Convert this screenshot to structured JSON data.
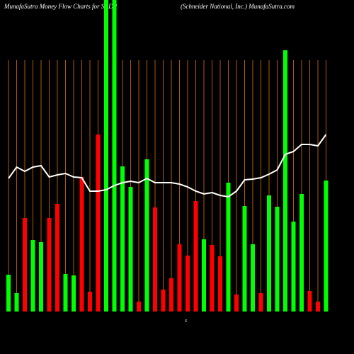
{
  "chart_data": {
    "type": "bar",
    "title": "MunafaSutra  Money  Flow  Charts for SNDR",
    "subtitle": "(Schneider  National,  Inc.)  MunafaSutra.com",
    "x_label": "S",
    "values": [
      52,
      26,
      132,
      101,
      98,
      132,
      152,
      53,
      51,
      190,
      28,
      250,
      440,
      440,
      205,
      176,
      14,
      215,
      147,
      31,
      47,
      95,
      79,
      156,
      102,
      94,
      78,
      182,
      24,
      149,
      95,
      26,
      164,
      148,
      369,
      127,
      166,
      29,
      14,
      185
    ],
    "colors": [
      "#00ff00",
      "#00ff00",
      "#ff0000",
      "#00ff00",
      "#00ff00",
      "#ff0000",
      "#ff0000",
      "#00ff00",
      "#00ff00",
      "#ff0000",
      "#ff0000",
      "#ff0000",
      "#00ff00",
      "#00ff00",
      "#00ff00",
      "#00ff00",
      "#ff0000",
      "#00ff00",
      "#ff0000",
      "#ff0000",
      "#ff0000",
      "#ff0000",
      "#ff0000",
      "#ff0000",
      "#00ff00",
      "#ff0000",
      "#ff0000",
      "#00ff00",
      "#ff0000",
      "#00ff00",
      "#00ff00",
      "#ff0000",
      "#00ff00",
      "#00ff00",
      "#00ff00",
      "#00ff00",
      "#00ff00",
      "#ff0000",
      "#ff0000",
      "#00ff00"
    ],
    "line_values": [
      188,
      204,
      198,
      204,
      206,
      190,
      193,
      195,
      190,
      189,
      170,
      170,
      172,
      178,
      182,
      184,
      182,
      188,
      182,
      182,
      182,
      180,
      176,
      170,
      166,
      168,
      164,
      162,
      170,
      186,
      187,
      189,
      194,
      200,
      222,
      226,
      236,
      236,
      234,
      250
    ],
    "line_color": "#ffffff",
    "grid_color": "#b35900",
    "ylim": [
      0,
      440
    ]
  }
}
